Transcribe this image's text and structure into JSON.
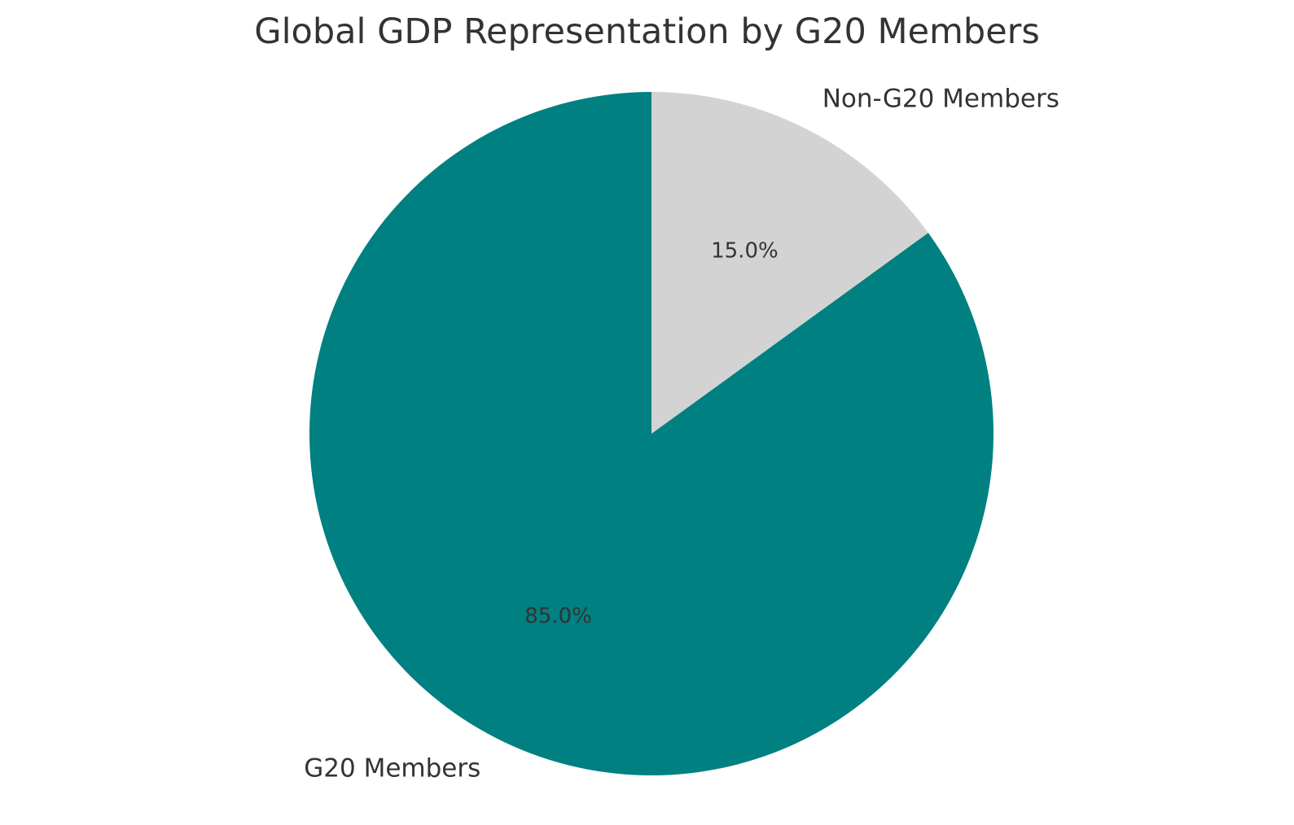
{
  "chart_data": {
    "type": "pie",
    "title": "Global GDP Representation by G20 Members",
    "slices": [
      {
        "label": "G20 Members",
        "value": 85.0,
        "pct_label": "85.0%",
        "color": "#008080"
      },
      {
        "label": "Non-G20 Members",
        "value": 15.0,
        "pct_label": "15.0%",
        "color": "#d3d3d3"
      }
    ],
    "start_angle": "top",
    "direction": "counterclockwise",
    "text_color": "#333333"
  }
}
